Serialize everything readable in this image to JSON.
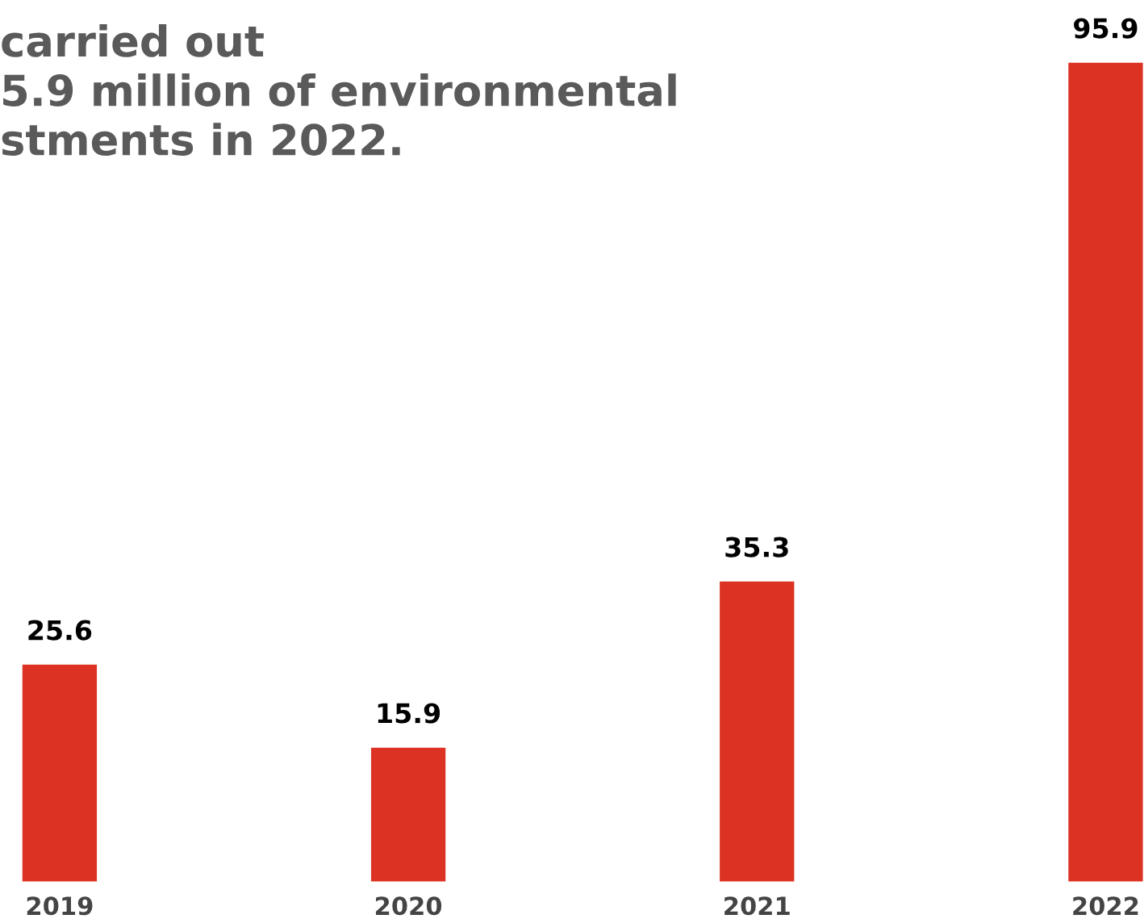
{
  "chart_data": {
    "type": "bar",
    "title": "carried out\n5.9 million of environmental\nstments in 2022.",
    "categories": [
      "2019",
      "2020",
      "2021",
      "2022"
    ],
    "values": [
      25.6,
      15.9,
      35.3,
      95.9
    ],
    "color": "#dc3224",
    "data_labels": true,
    "grid": false,
    "legend": false
  }
}
